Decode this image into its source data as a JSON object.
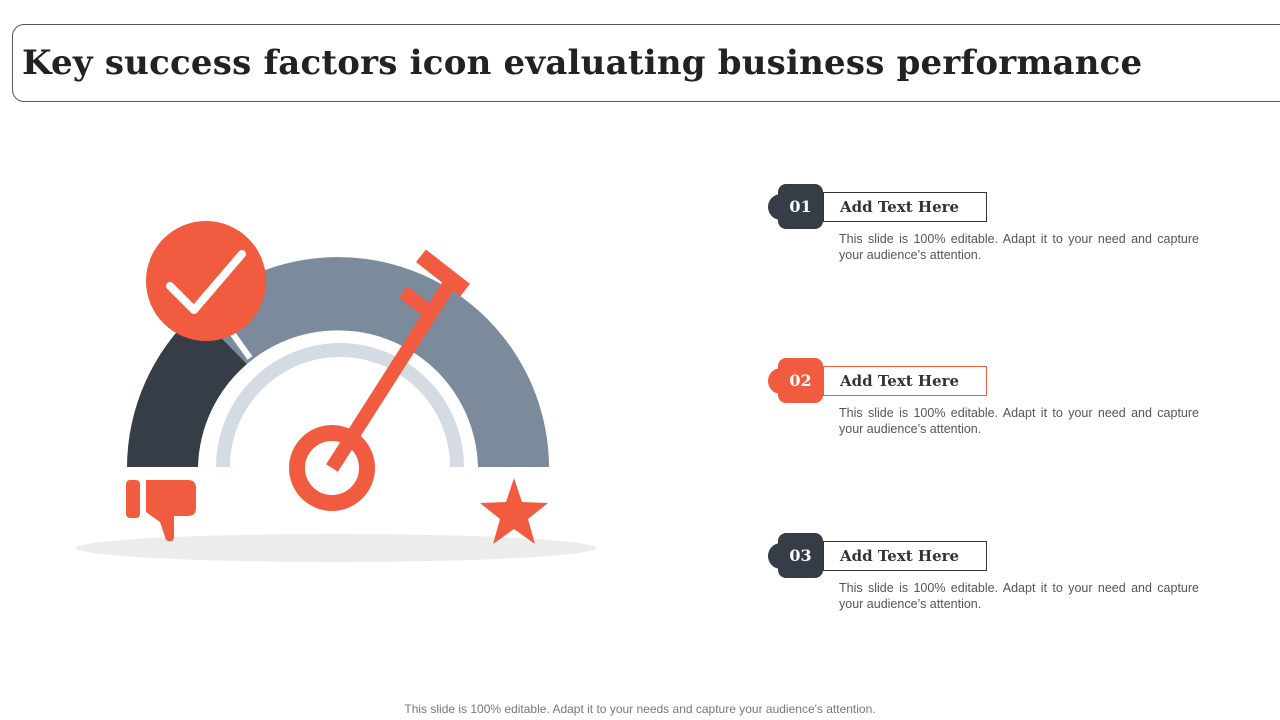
{
  "slide": {
    "title": "Key success factors icon evaluating business performance",
    "footer": "This slide is 100% editable. Adapt it to your needs and capture your audience's attention."
  },
  "colors": {
    "dark": "#363d47",
    "orange": "#f15b40",
    "gray_blue": "#7b8b9b",
    "light_gray": "#d5dbe2",
    "shadow": "#ececec"
  },
  "illustration": {
    "icons": [
      "check-icon",
      "key-icon",
      "thumbs-down-icon",
      "star-icon",
      "gauge-icon"
    ]
  },
  "items": [
    {
      "number": "01",
      "label": "Add Text Here",
      "description": "This slide is 100% editable. Adapt it to your need and capture your audience’s attention.",
      "color": "#363d47"
    },
    {
      "number": "02",
      "label": "Add Text Here",
      "description": "This slide is 100% editable. Adapt it to your need and capture your audience’s attention.",
      "color": "#f15b40"
    },
    {
      "number": "03",
      "label": "Add Text Here",
      "description": "This slide is 100% editable. Adapt it to your need and capture your audience’s attention.",
      "color": "#363d47"
    }
  ]
}
